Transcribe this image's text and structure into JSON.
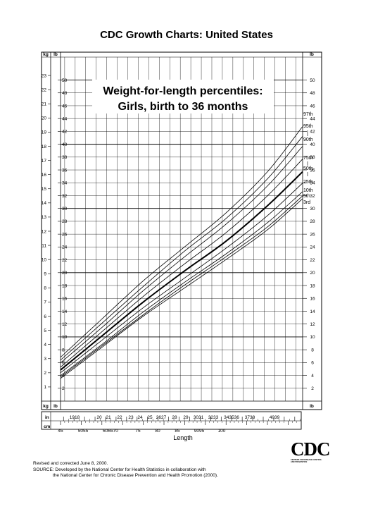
{
  "header": {
    "title": "CDC Growth Charts: United States"
  },
  "chart_data": {
    "type": "line",
    "title": "Weight-for-length percentiles:",
    "subtitle": "Girls, birth to 36 months",
    "xlabel": "Length",
    "unit_labels": {
      "kg": "kg",
      "lb": "lb",
      "in": "in",
      "cm": "cm"
    },
    "xlim_cm": [
      45,
      103.5
    ],
    "ylim_kg": [
      0,
      24
    ],
    "grid": true,
    "kg_ticks": [
      1,
      2,
      3,
      4,
      5,
      6,
      7,
      8,
      9,
      10,
      11,
      12,
      13,
      14,
      15,
      16,
      17,
      18,
      19,
      20,
      21,
      22,
      23
    ],
    "lb_ticks": [
      2,
      4,
      6,
      8,
      10,
      12,
      14,
      16,
      18,
      20,
      22,
      24,
      26,
      28,
      30,
      32,
      34,
      36,
      38,
      40,
      42,
      44,
      46,
      48,
      50
    ],
    "in_ticks": [
      "18",
      "19",
      "20",
      "21",
      "22",
      "23",
      "24",
      "25",
      "26",
      "27",
      "28",
      "29",
      "30",
      "31",
      "32",
      "33",
      "34",
      "35",
      "36",
      "37",
      "38",
      "39",
      "40"
    ],
    "in_label_text": [
      "1918",
      "20",
      "21",
      "22",
      "23",
      "24",
      "25",
      "2627",
      "28",
      "29",
      "3031",
      "3233",
      "343536",
      "3738",
      "4039"
    ],
    "cm_ticks": [
      45,
      50,
      55,
      60,
      65,
      70,
      75,
      80,
      85,
      90,
      95,
      100
    ],
    "cm_label_text": [
      "45",
      "5055",
      "606570",
      "75",
      "80",
      "85",
      "9095",
      "100"
    ],
    "x": [
      45,
      55,
      65,
      75,
      85,
      95,
      103.5
    ],
    "series": [
      {
        "name": "97th",
        "values": [
          3.1,
          5.8,
          8.5,
          10.9,
          13.3,
          16.2,
          19.4
        ]
      },
      {
        "name": "95th",
        "values": [
          2.9,
          5.5,
          8.1,
          10.6,
          12.9,
          15.7,
          18.7
        ]
      },
      {
        "name": "90th",
        "values": [
          2.7,
          5.2,
          7.8,
          10.2,
          12.5,
          15.2,
          18.0
        ]
      },
      {
        "name": "75th",
        "values": [
          2.4,
          4.9,
          7.4,
          9.7,
          11.9,
          14.5,
          17.1
        ]
      },
      {
        "name": "50th",
        "values": [
          2.2,
          4.6,
          7.0,
          9.2,
          11.3,
          13.8,
          16.2
        ]
      },
      {
        "name": "25th",
        "values": [
          2.0,
          4.3,
          6.6,
          8.7,
          10.8,
          13.1,
          15.4
        ]
      },
      {
        "name": "10th",
        "values": [
          1.8,
          4.0,
          6.3,
          8.4,
          10.4,
          12.6,
          14.8
        ]
      },
      {
        "name": "5th",
        "values": [
          1.7,
          3.9,
          6.1,
          8.2,
          10.2,
          12.3,
          14.5
        ]
      },
      {
        "name": "3rd",
        "values": [
          1.6,
          3.8,
          6.0,
          8.0,
          10.0,
          12.1,
          14.3
        ]
      }
    ]
  },
  "footer": {
    "line1": "Revised and corrected June 8, 2000.",
    "line2": "SOURCE: Developed by the National Center for Health Statistics in collaboration with",
    "line3": "the National Center for Chronic Disease Prevention and Health Promotion (2000)."
  },
  "logo": {
    "text": "CDC",
    "sub1": "CENTERS FOR DISEASE CONTROL",
    "sub2": "AND PREVENTION"
  }
}
